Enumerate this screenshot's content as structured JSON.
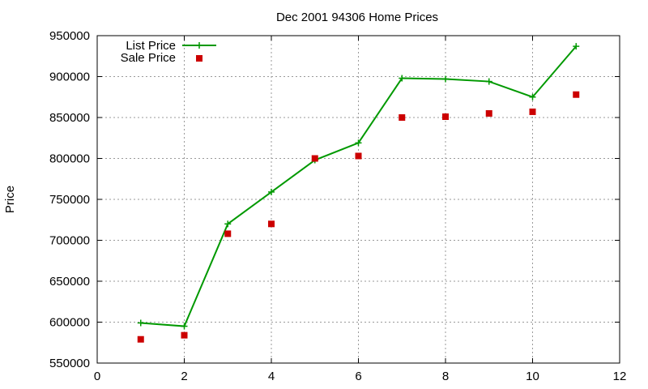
{
  "chart_data": {
    "type": "line",
    "title": "Dec 2001 94306 Home Prices",
    "xlabel": "",
    "ylabel": "Price",
    "xlim": [
      0,
      12
    ],
    "ylim": [
      550000,
      950000
    ],
    "x_ticks": [
      "0",
      "2",
      "4",
      "6",
      "8",
      "10",
      "12"
    ],
    "y_ticks": [
      "550000",
      "600000",
      "650000",
      "700000",
      "750000",
      "800000",
      "850000",
      "900000",
      "950000"
    ],
    "grid": true,
    "legend_position": "top-left",
    "series": [
      {
        "name": "List Price",
        "style": "line-with-plus-markers",
        "color": "#009900",
        "x": [
          1,
          2,
          3,
          4,
          5,
          6,
          7,
          8,
          9,
          10,
          11
        ],
        "y": [
          599000,
          595000,
          720000,
          759000,
          798000,
          819000,
          898000,
          897000,
          894000,
          875000,
          937000
        ]
      },
      {
        "name": "Sale Price",
        "style": "square-markers",
        "color": "#cc0000",
        "x": [
          1,
          2,
          3,
          4,
          5,
          6,
          7,
          8,
          9,
          10,
          11
        ],
        "y": [
          579000,
          584000,
          708000,
          720000,
          800000,
          803000,
          850000,
          851000,
          855000,
          857000,
          878000
        ]
      }
    ]
  }
}
